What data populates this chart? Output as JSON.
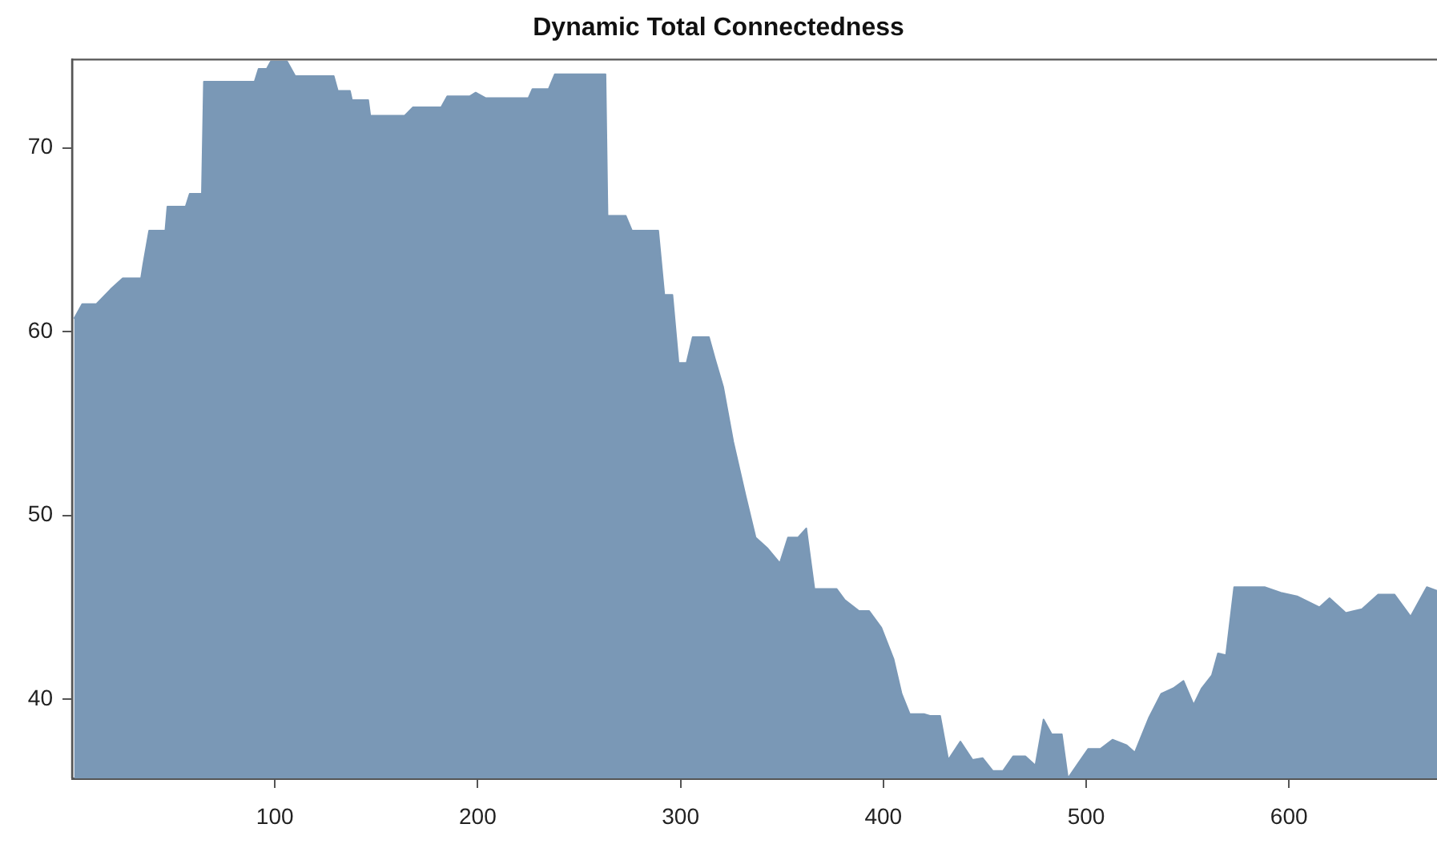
{
  "chart_data": {
    "type": "area",
    "title": "Dynamic Total Connectedness",
    "x": [
      1,
      5,
      12,
      19,
      25,
      34,
      35,
      38,
      46,
      47,
      56,
      58,
      64,
      65,
      90,
      92,
      96,
      98,
      106,
      110,
      129,
      131,
      137,
      138,
      146,
      147,
      164,
      168,
      182,
      185,
      196,
      199,
      204,
      225,
      227,
      235,
      238,
      263,
      264,
      273,
      276,
      289,
      292,
      296,
      299,
      303,
      306,
      314,
      317,
      321,
      326,
      332,
      337,
      343,
      349,
      353,
      358,
      362,
      366,
      377,
      381,
      388,
      393,
      399,
      405,
      409,
      413,
      420,
      423,
      428,
      432,
      438,
      444,
      449,
      454,
      459,
      464,
      470,
      475,
      479,
      483,
      488,
      491,
      496,
      501,
      507,
      513,
      520,
      524,
      531,
      537,
      543,
      548,
      553,
      557,
      562,
      565,
      569,
      573,
      588,
      596,
      604,
      615,
      620,
      628,
      636,
      644,
      652,
      660,
      668,
      673
    ],
    "series": [
      {
        "color": "#7a98b6",
        "values": [
          60.7,
          61.5,
          61.5,
          62.3,
          62.9,
          62.9,
          63.6,
          65.5,
          65.5,
          66.8,
          66.8,
          67.5,
          67.5,
          73.6,
          73.6,
          74.3,
          74.3,
          74.7,
          74.7,
          73.9,
          73.9,
          73.1,
          73.1,
          72.6,
          72.6,
          71.75,
          71.75,
          72.2,
          72.2,
          72.8,
          72.8,
          73.0,
          72.7,
          72.7,
          73.2,
          73.2,
          74.0,
          74.0,
          66.3,
          66.3,
          65.5,
          65.5,
          62.0,
          62.0,
          58.3,
          58.3,
          59.7,
          59.7,
          58.5,
          57.0,
          54.0,
          51.1,
          48.8,
          48.2,
          47.4,
          48.8,
          48.8,
          49.3,
          46.0,
          46.0,
          45.4,
          44.8,
          44.8,
          43.9,
          42.2,
          40.3,
          39.2,
          39.2,
          39.1,
          39.1,
          36.7,
          37.7,
          36.7,
          36.8,
          36.1,
          36.1,
          36.9,
          36.9,
          36.4,
          38.9,
          38.1,
          38.1,
          35.7,
          36.5,
          37.3,
          37.3,
          37.8,
          37.5,
          37.1,
          39.0,
          40.3,
          40.6,
          41.0,
          39.7,
          40.6,
          41.3,
          42.5,
          42.4,
          46.1,
          46.1,
          45.8,
          45.6,
          45.0,
          45.5,
          44.7,
          44.9,
          45.7,
          45.7,
          44.5,
          46.1,
          45.9
        ]
      }
    ],
    "xlim": [
      0,
      673
    ],
    "ylim": [
      35.7,
      74.8
    ],
    "xticks": [
      100,
      200,
      300,
      400,
      500,
      600
    ],
    "yticks": [
      40,
      50,
      60,
      70
    ],
    "grid": false,
    "legend": false
  }
}
